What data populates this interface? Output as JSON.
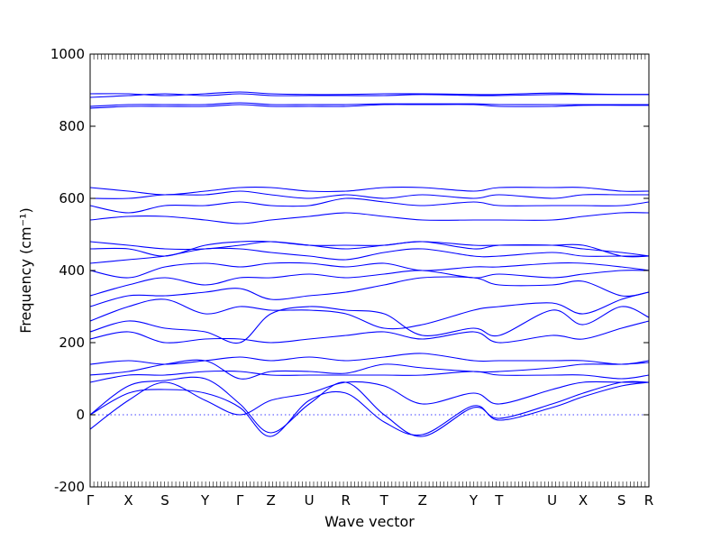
{
  "chart_data": {
    "type": "line",
    "title": "",
    "xlabel": "Wave vector",
    "ylabel": "Frequency (cm⁻¹)",
    "ylim": [
      -200,
      1000
    ],
    "yticks": [
      -200,
      0,
      200,
      400,
      600,
      800,
      1000
    ],
    "xlim": [
      0,
      15.3
    ],
    "xticks": [
      {
        "label": "Γ",
        "x": 0
      },
      {
        "label": "X",
        "x": 1.05
      },
      {
        "label": "S",
        "x": 2.05
      },
      {
        "label": "Y",
        "x": 3.15
      },
      {
        "label": "Γ",
        "x": 4.1
      },
      {
        "label": "Z",
        "x": 4.95
      },
      {
        "label": "U",
        "x": 6.0
      },
      {
        "label": "R",
        "x": 7.0
      },
      {
        "label": "T",
        "x": 8.05
      },
      {
        "label": "Z",
        "x": 9.1
      },
      {
        "label": "Y",
        "x": 10.5
      },
      {
        "label": "T",
        "x": 11.2
      },
      {
        "label": "U",
        "x": 12.65
      },
      {
        "label": "X",
        "x": 13.5
      },
      {
        "label": "S",
        "x": 14.55
      },
      {
        "label": "R",
        "x": 15.3
      }
    ],
    "zero_line": {
      "y": 0,
      "style": "dotted"
    },
    "series_color": "#0000ff",
    "series": [
      {
        "values": [
          0,
          80,
          95,
          100,
          30,
          -50,
          30,
          90,
          0,
          -60,
          20,
          -10,
          30,
          60,
          90,
          90
        ]
      },
      {
        "values": [
          0,
          60,
          70,
          60,
          20,
          -60,
          40,
          60,
          -20,
          -55,
          25,
          -15,
          20,
          50,
          80,
          90
        ]
      },
      {
        "values": [
          -40,
          40,
          90,
          40,
          0,
          40,
          60,
          90,
          80,
          30,
          60,
          30,
          70,
          90,
          90,
          90
        ]
      },
      {
        "values": [
          90,
          110,
          110,
          120,
          120,
          110,
          110,
          110,
          110,
          110,
          120,
          110,
          110,
          110,
          100,
          110
        ]
      },
      {
        "values": [
          110,
          120,
          140,
          150,
          100,
          120,
          120,
          115,
          140,
          130,
          120,
          120,
          130,
          140,
          140,
          145
        ]
      },
      {
        "values": [
          140,
          150,
          140,
          150,
          160,
          150,
          160,
          150,
          160,
          170,
          150,
          150,
          150,
          150,
          140,
          150
        ]
      },
      {
        "values": [
          210,
          230,
          200,
          210,
          210,
          200,
          210,
          220,
          230,
          210,
          230,
          200,
          220,
          210,
          240,
          260
        ]
      },
      {
        "values": [
          230,
          260,
          240,
          230,
          200,
          280,
          300,
          290,
          280,
          220,
          240,
          220,
          290,
          250,
          300,
          270
        ]
      },
      {
        "values": [
          260,
          300,
          320,
          280,
          300,
          290,
          290,
          280,
          240,
          250,
          290,
          300,
          310,
          280,
          320,
          340
        ]
      },
      {
        "values": [
          300,
          330,
          330,
          340,
          350,
          320,
          330,
          340,
          360,
          380,
          380,
          360,
          360,
          370,
          330,
          340
        ]
      },
      {
        "values": [
          330,
          360,
          380,
          360,
          380,
          380,
          390,
          380,
          390,
          400,
          380,
          390,
          380,
          390,
          400,
          400
        ]
      },
      {
        "values": [
          400,
          380,
          410,
          420,
          410,
          420,
          420,
          410,
          420,
          400,
          410,
          410,
          420,
          420,
          410,
          400
        ]
      },
      {
        "values": [
          420,
          430,
          440,
          460,
          460,
          450,
          440,
          430,
          450,
          460,
          440,
          440,
          450,
          440,
          440,
          440
        ]
      },
      {
        "values": [
          460,
          460,
          440,
          470,
          480,
          480,
          470,
          470,
          470,
          480,
          460,
          470,
          470,
          460,
          450,
          440
        ]
      },
      {
        "values": [
          480,
          470,
          460,
          460,
          470,
          480,
          470,
          460,
          470,
          480,
          470,
          470,
          470,
          470,
          440,
          440
        ]
      },
      {
        "values": [
          540,
          550,
          550,
          540,
          530,
          540,
          550,
          560,
          550,
          540,
          540,
          540,
          540,
          550,
          560,
          560
        ]
      },
      {
        "values": [
          580,
          560,
          580,
          580,
          590,
          580,
          580,
          600,
          590,
          580,
          590,
          580,
          580,
          580,
          580,
          590
        ]
      },
      {
        "values": [
          600,
          600,
          610,
          610,
          620,
          610,
          600,
          610,
          600,
          610,
          600,
          610,
          600,
          610,
          610,
          610
        ]
      },
      {
        "values": [
          630,
          620,
          610,
          620,
          630,
          630,
          620,
          620,
          630,
          630,
          620,
          630,
          630,
          630,
          620,
          620
        ]
      },
      {
        "values": [
          850,
          855,
          855,
          855,
          860,
          855,
          855,
          855,
          860,
          860,
          860,
          855,
          855,
          858,
          858,
          858
        ]
      },
      {
        "values": [
          855,
          860,
          860,
          860,
          865,
          860,
          860,
          860,
          862,
          862,
          862,
          860,
          860,
          860,
          860,
          860
        ]
      },
      {
        "values": [
          880,
          885,
          890,
          885,
          890,
          885,
          885,
          885,
          885,
          888,
          885,
          885,
          888,
          888,
          888,
          888
        ]
      },
      {
        "values": [
          890,
          890,
          885,
          890,
          895,
          890,
          888,
          888,
          890,
          890,
          888,
          888,
          892,
          890,
          888,
          888
        ]
      }
    ]
  }
}
